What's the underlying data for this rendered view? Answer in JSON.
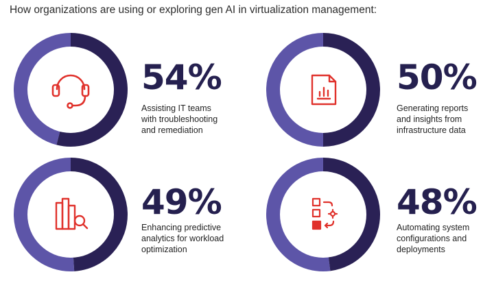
{
  "title": "How organizations are using or exploring gen AI in virtualization management:",
  "colors": {
    "value_arc": "#2a2155",
    "remainder_arc": "#5d55a8",
    "inner_circle": "#ffffff",
    "icon_color": "#e0312b",
    "percent_text": "#25204f"
  },
  "chart_data": {
    "type": "pie",
    "unit": "%",
    "items": [
      {
        "percent": 54,
        "label": "54%",
        "description_lines": [
          "Assisting IT teams",
          "with troubleshooting",
          "and remediation"
        ],
        "icon": "headset-icon"
      },
      {
        "percent": 50,
        "label": "50%",
        "description_lines": [
          "Generating reports",
          "and insights from",
          "infrastructure data"
        ],
        "icon": "report-document-icon"
      },
      {
        "percent": 49,
        "label": "49%",
        "description_lines": [
          "Enhancing predictive",
          "analytics for workload",
          "optimization"
        ],
        "icon": "analytics-magnifier-icon"
      },
      {
        "percent": 48,
        "label": "48%",
        "description_lines": [
          "Automating system",
          "configurations and",
          "deployments"
        ],
        "icon": "automation-icon"
      }
    ]
  }
}
